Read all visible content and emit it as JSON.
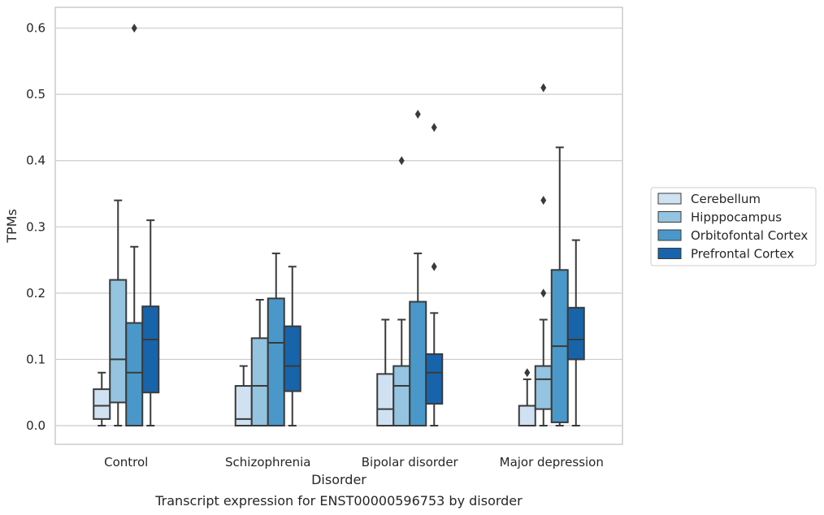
{
  "chart_data": {
    "type": "boxplot",
    "caption": "Transcript expression for ENST00000596753 by disorder",
    "xlabel": "Disorder",
    "ylabel": "TPMs",
    "ylim": [
      -0.03,
      0.63
    ],
    "yticks": [
      "0.0",
      "0.1",
      "0.2",
      "0.3",
      "0.4",
      "0.5",
      "0.6"
    ],
    "grid": true,
    "legend_position": "right",
    "categories": [
      "Control",
      "Schizophrenia",
      "Bipolar disorder",
      "Major depression"
    ],
    "series": [
      {
        "name": "Cerebellum",
        "color": "#d0e1f2",
        "boxes": [
          {
            "whislo": 0.0,
            "q1": 0.01,
            "med": 0.03,
            "q3": 0.055,
            "whishi": 0.08,
            "fliers": []
          },
          {
            "whislo": 0.0,
            "q1": 0.0,
            "med": 0.01,
            "q3": 0.06,
            "whishi": 0.09,
            "fliers": []
          },
          {
            "whislo": 0.0,
            "q1": 0.0,
            "med": 0.025,
            "q3": 0.078,
            "whishi": 0.16,
            "fliers": []
          },
          {
            "whislo": 0.0,
            "q1": 0.0,
            "med": 0.0,
            "q3": 0.03,
            "whishi": 0.07,
            "fliers": [
              0.08
            ]
          }
        ]
      },
      {
        "name": "Hipppocampus",
        "color": "#94c4df",
        "boxes": [
          {
            "whislo": 0.0,
            "q1": 0.035,
            "med": 0.1,
            "q3": 0.22,
            "whishi": 0.34,
            "fliers": []
          },
          {
            "whislo": 0.0,
            "q1": 0.0,
            "med": 0.06,
            "q3": 0.132,
            "whishi": 0.19,
            "fliers": []
          },
          {
            "whislo": 0.0,
            "q1": 0.0,
            "med": 0.06,
            "q3": 0.09,
            "whishi": 0.16,
            "fliers": [
              0.4
            ]
          },
          {
            "whislo": 0.0,
            "q1": 0.025,
            "med": 0.07,
            "q3": 0.09,
            "whishi": 0.16,
            "fliers": [
              0.2,
              0.34,
              0.51
            ]
          }
        ]
      },
      {
        "name": "Orbitofontal Cortex",
        "color": "#4a98c9",
        "boxes": [
          {
            "whislo": 0.0,
            "q1": 0.0,
            "med": 0.08,
            "q3": 0.155,
            "whishi": 0.27,
            "fliers": [
              0.6
            ]
          },
          {
            "whislo": 0.0,
            "q1": 0.0,
            "med": 0.125,
            "q3": 0.192,
            "whishi": 0.26,
            "fliers": []
          },
          {
            "whislo": 0.0,
            "q1": 0.0,
            "med": 0.0,
            "q3": 0.187,
            "whishi": 0.26,
            "fliers": [
              0.47
            ]
          },
          {
            "whislo": 0.0,
            "q1": 0.005,
            "med": 0.12,
            "q3": 0.235,
            "whishi": 0.42,
            "fliers": []
          }
        ]
      },
      {
        "name": "Prefrontal Cortex",
        "color": "#1764ab",
        "boxes": [
          {
            "whislo": 0.0,
            "q1": 0.05,
            "med": 0.13,
            "q3": 0.18,
            "whishi": 0.31,
            "fliers": []
          },
          {
            "whislo": 0.0,
            "q1": 0.052,
            "med": 0.09,
            "q3": 0.15,
            "whishi": 0.24,
            "fliers": []
          },
          {
            "whislo": 0.0,
            "q1": 0.033,
            "med": 0.08,
            "q3": 0.108,
            "whishi": 0.17,
            "fliers": [
              0.24,
              0.45
            ]
          },
          {
            "whislo": 0.0,
            "q1": 0.1,
            "med": 0.13,
            "q3": 0.178,
            "whishi": 0.28,
            "fliers": []
          }
        ]
      }
    ]
  }
}
